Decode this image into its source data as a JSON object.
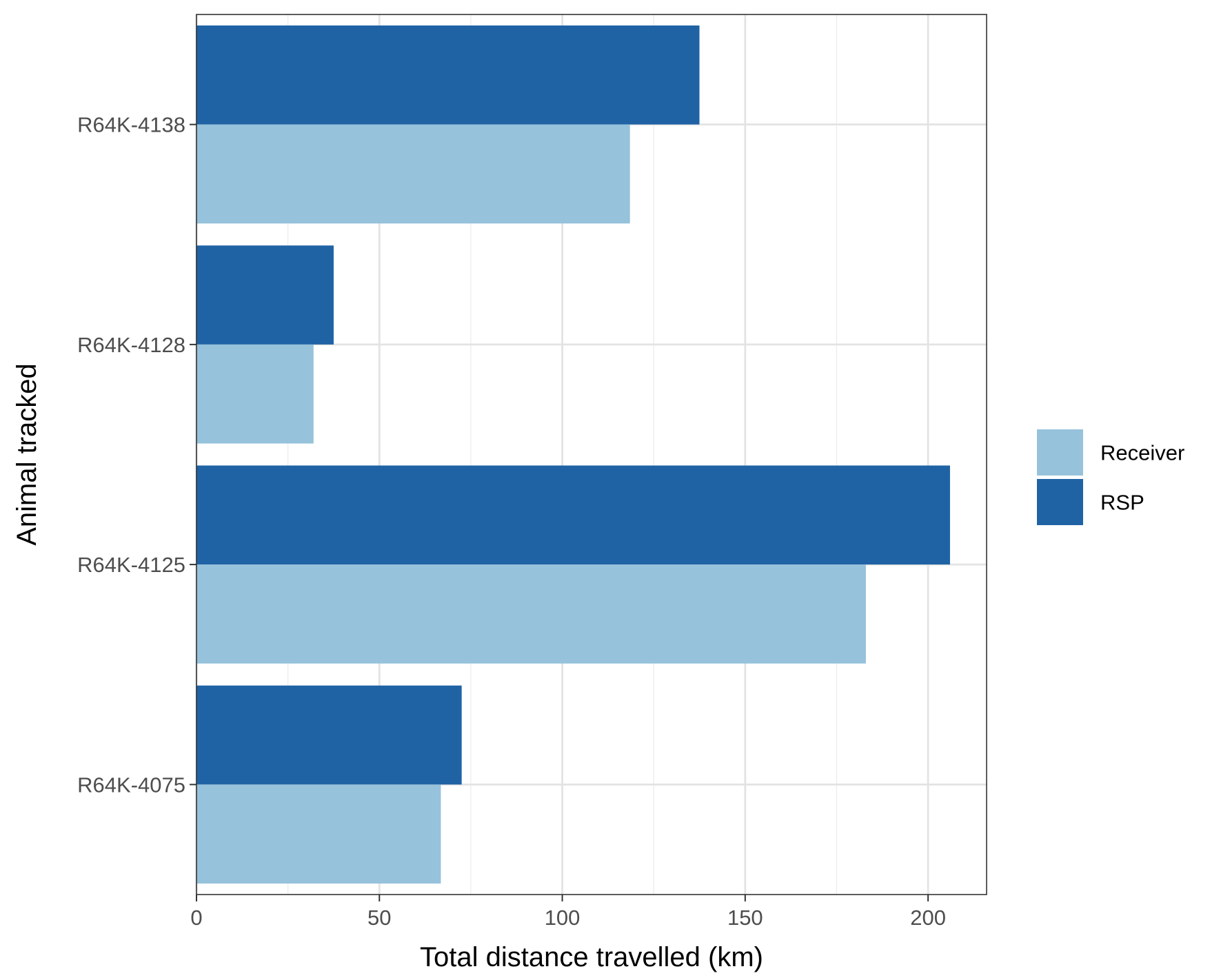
{
  "chart_data": {
    "type": "bar",
    "orientation": "horizontal",
    "categories": [
      "R64K-4138",
      "R64K-4128",
      "R64K-4125",
      "R64K-4075"
    ],
    "series": [
      {
        "name": "Receiver",
        "color": "#96c2db",
        "values": [
          118.5,
          32,
          183,
          66.8
        ]
      },
      {
        "name": "RSP",
        "color": "#1f63a5",
        "values": [
          137.5,
          37.5,
          206,
          72.5
        ]
      }
    ],
    "xlabel": "Total distance travelled (km)",
    "ylabel": "Animal tracked",
    "xlim": [
      0,
      216
    ],
    "xticks": [
      0,
      50,
      100,
      150,
      200
    ],
    "grid": true,
    "legend": {
      "position": "right",
      "entries": [
        "Receiver",
        "RSP"
      ]
    }
  }
}
